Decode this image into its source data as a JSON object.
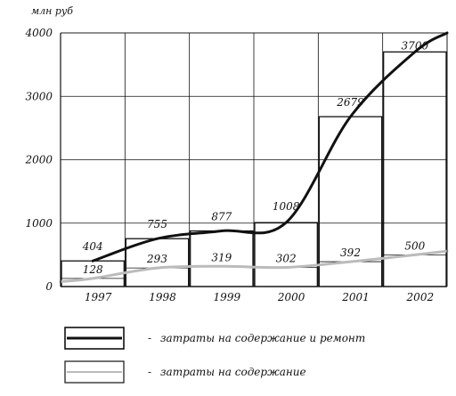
{
  "chart_data": {
    "type": "bar",
    "unit_label": "млн руб",
    "categories": [
      "1997",
      "1998",
      "1999",
      "2000",
      "2001",
      "2002"
    ],
    "ylim": [
      0,
      4000
    ],
    "yticks": [
      "0",
      "1000",
      "2000",
      "3000",
      "4000"
    ],
    "grid": true,
    "series": [
      {
        "name": "затраты на содержание и ремонт",
        "values": [
          404,
          755,
          877,
          1008,
          2679,
          3700
        ],
        "labels": [
          "404",
          "755",
          "877",
          "1008",
          "2679",
          "3700"
        ],
        "color": "#111111"
      },
      {
        "name": "затраты на содержание",
        "values": [
          128,
          293,
          319,
          302,
          392,
          500
        ],
        "labels": [
          "128",
          "293",
          "319",
          "302",
          "392",
          "500"
        ],
        "color": "#bbbbbb"
      }
    ],
    "legend_position": "bottom"
  }
}
